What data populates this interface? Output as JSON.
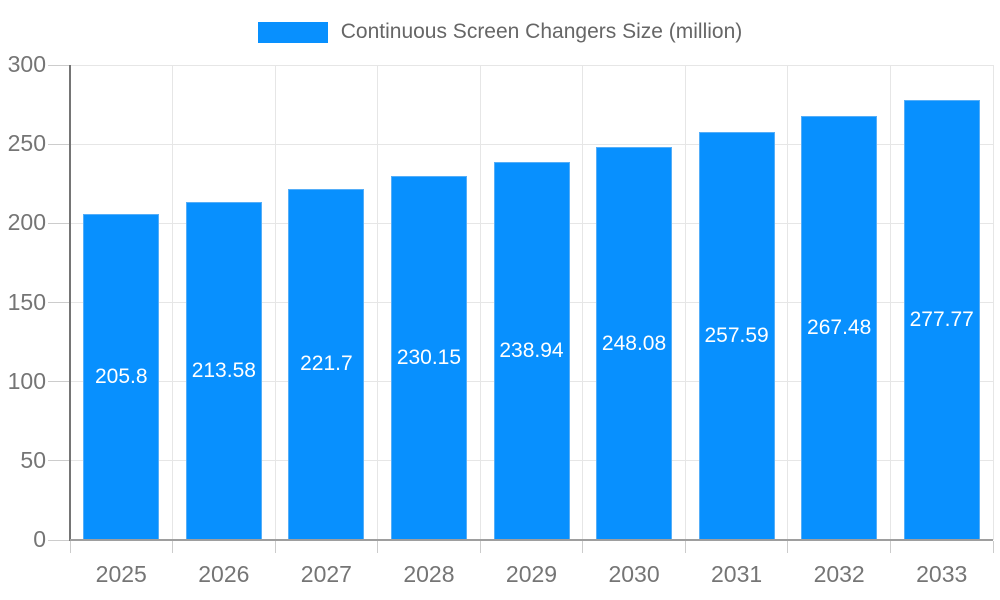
{
  "legend": {
    "label": "Continuous Screen Changers Size (million)"
  },
  "chart_data": {
    "type": "bar",
    "title": "",
    "xlabel": "",
    "ylabel": "",
    "categories": [
      "2025",
      "2026",
      "2027",
      "2028",
      "2029",
      "2030",
      "2031",
      "2032",
      "2033"
    ],
    "series": [
      {
        "name": "Continuous Screen Changers Size (million)",
        "values": [
          205.8,
          213.58,
          221.7,
          230.15,
          238.94,
          248.08,
          257.59,
          267.48,
          277.77
        ],
        "value_labels": [
          "205.8",
          "213.58",
          "221.7",
          "230.15",
          "238.94",
          "248.08",
          "257.59",
          "267.48",
          "277.77"
        ]
      }
    ],
    "ylim": [
      0,
      300
    ],
    "yticks": [
      0,
      50,
      100,
      150,
      200,
      250,
      300
    ],
    "grid": true,
    "legend_position": "top-center",
    "data_label_position": "inside-center",
    "colors": {
      "bar": "#0890FE",
      "bar_border": "#55AEF8",
      "data_label": "#FFFFFF",
      "axis_label": "#757575",
      "legend_text": "#666666",
      "gridline": "#E6E6E6",
      "tick": "#CCCCCC",
      "baseline": "#9E9E9E",
      "y_axis_line": "#757575",
      "background": "#FFFFFF"
    }
  }
}
